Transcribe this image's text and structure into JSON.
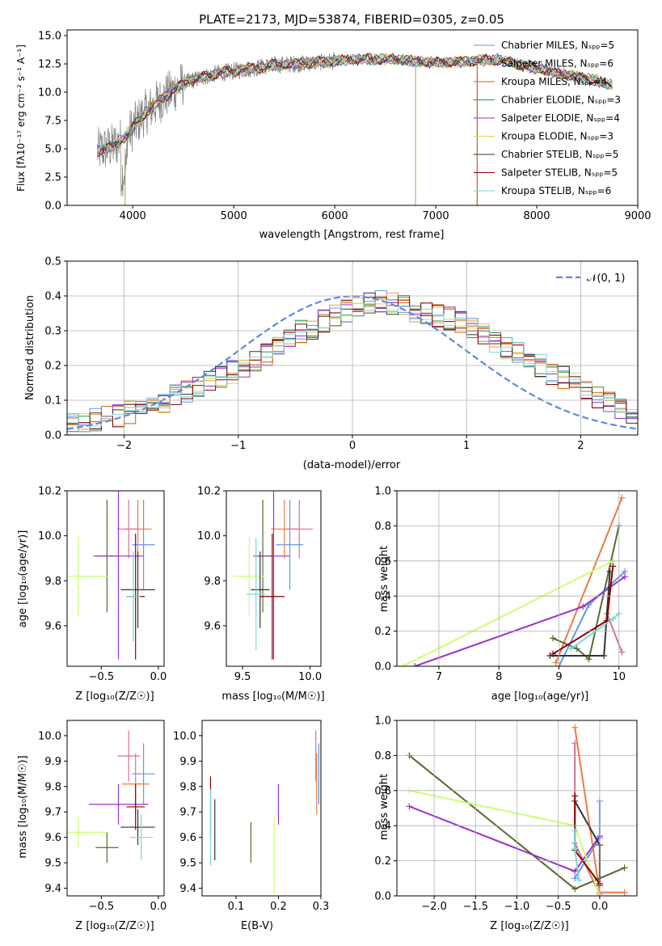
{
  "figure_title": "PLATE=2173, MJD=53874, FIBERID=0305, z=0.05",
  "colors": {
    "models": [
      "#6495ED",
      "#EE9A49",
      "#CD6600",
      "#2E8B57",
      "#9A32CD",
      "#E3CF57",
      "#333333",
      "#8B0000",
      "#7AD7D7"
    ],
    "data_gray": "#808080",
    "mixed": [
      "#6495ED",
      "#EE7942",
      "#D87093",
      "#556B2F",
      "#9A32CD",
      "#CAFF70",
      "#333333",
      "#8B0000",
      "#7AD7D7"
    ]
  },
  "chart_data": [
    {
      "id": "spectrum",
      "type": "line",
      "xlabel": "wavelength [Angstrom, rest frame]",
      "ylabel": "Flux [fλ10⁻¹⁷ erg cm⁻² s⁻¹ A⁻¹]",
      "xlim": [
        3350,
        9000
      ],
      "ylim": [
        0,
        15.5
      ],
      "xticks": [
        4000,
        5000,
        6000,
        7000,
        8000,
        9000
      ],
      "yticks": [
        0.0,
        2.5,
        5.0,
        7.5,
        10.0,
        12.5,
        15.0
      ],
      "legend_position": "upper right",
      "legend": [
        "Chabrier MILES, Nₛₚₚ=5",
        "Salpeter MILES, Nₛₚₚ=6",
        "Kroupa MILES, Nₛₚₚ=4",
        "Chabrier ELODIE, Nₛₚₚ=3",
        "Salpeter ELODIE, Nₛₚₚ=4",
        "Kroupa ELODIE, Nₛₚₚ=3",
        "Chabrier STELIB, Nₛₚₚ=5",
        "Salpeter STELIB, Nₛₚₚ=5",
        "Kroupa STELIB, Nₛₚₚ=6"
      ],
      "continuum": [
        [
          3650,
          4.8
        ],
        [
          3800,
          5.2
        ],
        [
          3950,
          6.2
        ],
        [
          4100,
          8.0
        ],
        [
          4300,
          9.5
        ],
        [
          4500,
          10.8
        ],
        [
          4800,
          11.6
        ],
        [
          5100,
          12.0
        ],
        [
          5400,
          12.4
        ],
        [
          5800,
          12.6
        ],
        [
          6200,
          12.9
        ],
        [
          6600,
          12.9
        ],
        [
          7000,
          12.6
        ],
        [
          7300,
          12.7
        ],
        [
          7600,
          12.9
        ],
        [
          7900,
          12.3
        ],
        [
          8200,
          11.7
        ],
        [
          8500,
          11.2
        ],
        [
          8700,
          10.7
        ]
      ]
    },
    {
      "id": "residuals",
      "type": "line",
      "xlabel": "(data-model)/error",
      "ylabel": "Normed distribution",
      "xlim": [
        -2.5,
        2.5
      ],
      "ylim": [
        0,
        0.5
      ],
      "xticks": [
        -2,
        -1,
        0,
        1,
        2
      ],
      "yticks": [
        0.0,
        0.1,
        0.2,
        0.3,
        0.4,
        0.5
      ],
      "legend": "𝒩(0, 1)",
      "legend_position": "upper right",
      "bin_width": 0.1,
      "hist_base": [
        0.03,
        0.035,
        0.045,
        0.05,
        0.055,
        0.065,
        0.075,
        0.085,
        0.095,
        0.11,
        0.125,
        0.14,
        0.155,
        0.17,
        0.18,
        0.2,
        0.21,
        0.23,
        0.255,
        0.275,
        0.295,
        0.31,
        0.325,
        0.345,
        0.355,
        0.37,
        0.38,
        0.385,
        0.38,
        0.37,
        0.36,
        0.355,
        0.345,
        0.335,
        0.32,
        0.305,
        0.29,
        0.27,
        0.25,
        0.235,
        0.215,
        0.2,
        0.18,
        0.165,
        0.145,
        0.125,
        0.11,
        0.095,
        0.08,
        0.065
      ]
    },
    {
      "id": "age-vs-Z",
      "type": "scatter",
      "xlabel": "Z [log₁₀(Z/Z☉)]",
      "ylabel": "age  [log₁₀(age/yr)]",
      "xlim": [
        -0.8,
        0.05
      ],
      "ylim": [
        9.42,
        10.2
      ],
      "xticks": [
        -0.5,
        0.0
      ],
      "ytick_labels": [
        "9.6",
        "9.8",
        "10.0",
        "10.2"
      ],
      "points": [
        {
          "x": -0.13,
          "xe": 0.1,
          "y": 9.96,
          "ye": 0.2
        },
        {
          "x": -0.18,
          "xe": 0.12,
          "y": 10.03,
          "ye": 0.13
        },
        {
          "x": -0.26,
          "xe": 0.1,
          "y": 10.03,
          "ye": 0.13
        },
        {
          "x": -0.45,
          "xe": 0.1,
          "y": 9.91,
          "ye": 0.25
        },
        {
          "x": -0.35,
          "xe": 0.22,
          "y": 9.91,
          "ye": 0.46
        },
        {
          "x": -0.7,
          "xe": 0.26,
          "y": 9.82,
          "ye": 0.18
        },
        {
          "x": -0.18,
          "xe": 0.15,
          "y": 9.76,
          "ye": 0.17
        },
        {
          "x": -0.2,
          "xe": 0.08,
          "y": 9.73,
          "ye": 0.28
        },
        {
          "x": -0.22,
          "xe": 0.06,
          "y": 9.73,
          "ye": 0.2
        }
      ]
    },
    {
      "id": "age-vs-mass",
      "type": "scatter",
      "xlabel": "mass [log₁₀(M/M☉)]",
      "xlim": [
        9.38,
        10.08
      ],
      "ylim": [
        9.42,
        10.2
      ],
      "xticks": [
        9.5,
        10.0
      ],
      "ytick_labels": [
        "9.6",
        "9.8",
        "10.0",
        "10.2"
      ],
      "points": [
        {
          "x": 9.85,
          "xe": 0.1,
          "y": 9.96,
          "ye": 0.2
        },
        {
          "x": 9.81,
          "xe": 0.1,
          "y": 10.03,
          "ye": 0.13
        },
        {
          "x": 9.92,
          "xe": 0.1,
          "y": 10.03,
          "ye": 0.13
        },
        {
          "x": 9.65,
          "xe": 0.07,
          "y": 9.91,
          "ye": 0.25
        },
        {
          "x": 9.73,
          "xe": 0.12,
          "y": 9.91,
          "ye": 0.46
        },
        {
          "x": 9.55,
          "xe": 0.12,
          "y": 9.82,
          "ye": 0.18
        },
        {
          "x": 9.63,
          "xe": 0.07,
          "y": 9.76,
          "ye": 0.17
        },
        {
          "x": 9.72,
          "xe": 0.09,
          "y": 9.73,
          "ye": 0.28
        },
        {
          "x": 9.6,
          "xe": 0.07,
          "y": 9.74,
          "ye": 0.25
        }
      ]
    },
    {
      "id": "massweight-vs-age",
      "type": "line",
      "xlabel": "age  [log₁₀(age/yr)]",
      "ylabel": "mass weight",
      "xlim": [
        6.3,
        10.3
      ],
      "ylim": [
        0,
        1.0
      ],
      "xticks": [
        7,
        8,
        9,
        10
      ],
      "yticks": [
        0.0,
        0.2,
        0.4,
        0.6,
        0.8,
        1.0
      ],
      "series": [
        {
          "x": [
            9.0,
            9.5,
            10.1
          ],
          "y": [
            0.0,
            0.35,
            0.54
          ]
        },
        {
          "x": [
            8.95,
            10.05
          ],
          "y": [
            0.02,
            0.96
          ]
        },
        {
          "x": [
            9.8,
            10.05
          ],
          "y": [
            0.3,
            0.08
          ]
        },
        {
          "x": [
            8.9,
            9.3,
            9.5,
            10.0
          ],
          "y": [
            0.16,
            0.1,
            0.04,
            0.8
          ]
        },
        {
          "x": [
            6.6,
            9.4,
            10.1
          ],
          "y": [
            0.0,
            0.34,
            0.51
          ]
        },
        {
          "x": [
            6.4,
            9.9
          ],
          "y": [
            0.0,
            0.6
          ]
        },
        {
          "x": [
            8.85,
            9.75,
            9.85
          ],
          "y": [
            0.06,
            0.06,
            0.54
          ]
        },
        {
          "x": [
            8.9,
            9.8,
            9.9
          ],
          "y": [
            0.07,
            0.26,
            0.57
          ]
        },
        {
          "x": [
            9.2,
            9.9,
            10.0
          ],
          "y": [
            0.1,
            0.27,
            0.3
          ]
        }
      ]
    },
    {
      "id": "mass-vs-Z",
      "type": "scatter",
      "xlabel": "Z [log₁₀(Z/Z☉)]",
      "ylabel": "mass [log₁₀(M/M☉)]",
      "xlim": [
        -0.8,
        0.05
      ],
      "ylim": [
        9.37,
        10.06
      ],
      "xticks": [
        -0.5,
        0.0
      ],
      "ytick_labels": [
        "9.4",
        "9.5",
        "9.6",
        "9.7",
        "9.8",
        "9.9",
        "10.0"
      ],
      "points": [
        {
          "x": -0.13,
          "xe": 0.1,
          "y": 9.85,
          "ye": 0.12
        },
        {
          "x": -0.2,
          "xe": 0.12,
          "y": 9.81,
          "ye": 0.12
        },
        {
          "x": -0.26,
          "xe": 0.1,
          "y": 9.92,
          "ye": 0.1
        },
        {
          "x": -0.45,
          "xe": 0.1,
          "y": 9.56,
          "ye": 0.06
        },
        {
          "x": -0.35,
          "xe": 0.26,
          "y": 9.73,
          "ye": 0.08
        },
        {
          "x": -0.7,
          "xe": 0.25,
          "y": 9.62,
          "ye": 0.06
        },
        {
          "x": -0.18,
          "xe": 0.15,
          "y": 9.64,
          "ye": 0.07
        },
        {
          "x": -0.2,
          "xe": 0.08,
          "y": 9.72,
          "ye": 0.09
        },
        {
          "x": -0.15,
          "xe": 0.1,
          "y": 9.6,
          "ye": 0.09
        }
      ]
    },
    {
      "id": "mass-vs-ebv",
      "type": "scatter",
      "xlabel": "E(B-V)",
      "xlim": [
        0.02,
        0.3
      ],
      "ylim": [
        9.37,
        10.06
      ],
      "xticks": [
        0.1,
        0.2,
        0.3
      ],
      "ytick_labels": [
        "9.4",
        "9.5",
        "9.6",
        "9.7",
        "9.8",
        "9.9",
        "10.0"
      ],
      "points": [
        {
          "x": 0.295,
          "y": 9.85,
          "ye": 0.12
        },
        {
          "x": 0.29,
          "y": 9.81,
          "ye": 0.12
        },
        {
          "x": 0.288,
          "y": 9.92,
          "ye": 0.1
        },
        {
          "x": 0.135,
          "y": 9.58,
          "ye": 0.08
        },
        {
          "x": 0.2,
          "y": 9.73,
          "ye": 0.08
        },
        {
          "x": 0.19,
          "y": 9.53,
          "ye": 0.15
        },
        {
          "x": 0.05,
          "y": 9.63,
          "ye": 0.12
        },
        {
          "x": 0.04,
          "y": 9.72,
          "ye": 0.12
        },
        {
          "x": 0.04,
          "y": 9.64,
          "ye": 0.15
        }
      ]
    },
    {
      "id": "massweight-vs-Z",
      "type": "line",
      "xlabel": "Z [log₁₀(Z/Z☉)]",
      "ylabel": "mass weight",
      "xlim": [
        -2.45,
        0.45
      ],
      "ylim": [
        0,
        1.0
      ],
      "xticks": [
        -2.0,
        -1.5,
        -1.0,
        -0.5,
        0.0
      ],
      "yticks": [
        0.0,
        0.2,
        0.4,
        0.6,
        0.8,
        1.0
      ],
      "series": [
        {
          "x": [
            -0.3,
            0.0,
            0.0
          ],
          "y": [
            0.1,
            0.33,
            0.54
          ]
        },
        {
          "x": [
            -0.3,
            0.0,
            0.3
          ],
          "y": [
            0.96,
            0.02,
            0.02
          ]
        },
        {
          "x": [
            -0.3,
            -0.3,
            0.0
          ],
          "y": [
            0.87,
            0.3,
            0.01
          ]
        },
        {
          "x": [
            -2.3,
            -0.3,
            0.3
          ],
          "y": [
            0.8,
            0.04,
            0.16
          ]
        },
        {
          "x": [
            -2.3,
            -0.3,
            0.0
          ],
          "y": [
            0.51,
            0.14,
            0.34
          ]
        },
        {
          "x": [
            -2.3,
            -0.3,
            0.0
          ],
          "y": [
            0.6,
            0.4,
            0.0
          ]
        },
        {
          "x": [
            -0.3,
            0.0,
            0.0
          ],
          "y": [
            0.54,
            0.29,
            0.06
          ]
        },
        {
          "x": [
            -0.3,
            -0.3,
            0.0
          ],
          "y": [
            0.57,
            0.26,
            0.07
          ]
        },
        {
          "x": [
            -0.3,
            -0.3,
            -0.25
          ],
          "y": [
            0.37,
            0.27,
            0.09
          ]
        }
      ]
    }
  ]
}
